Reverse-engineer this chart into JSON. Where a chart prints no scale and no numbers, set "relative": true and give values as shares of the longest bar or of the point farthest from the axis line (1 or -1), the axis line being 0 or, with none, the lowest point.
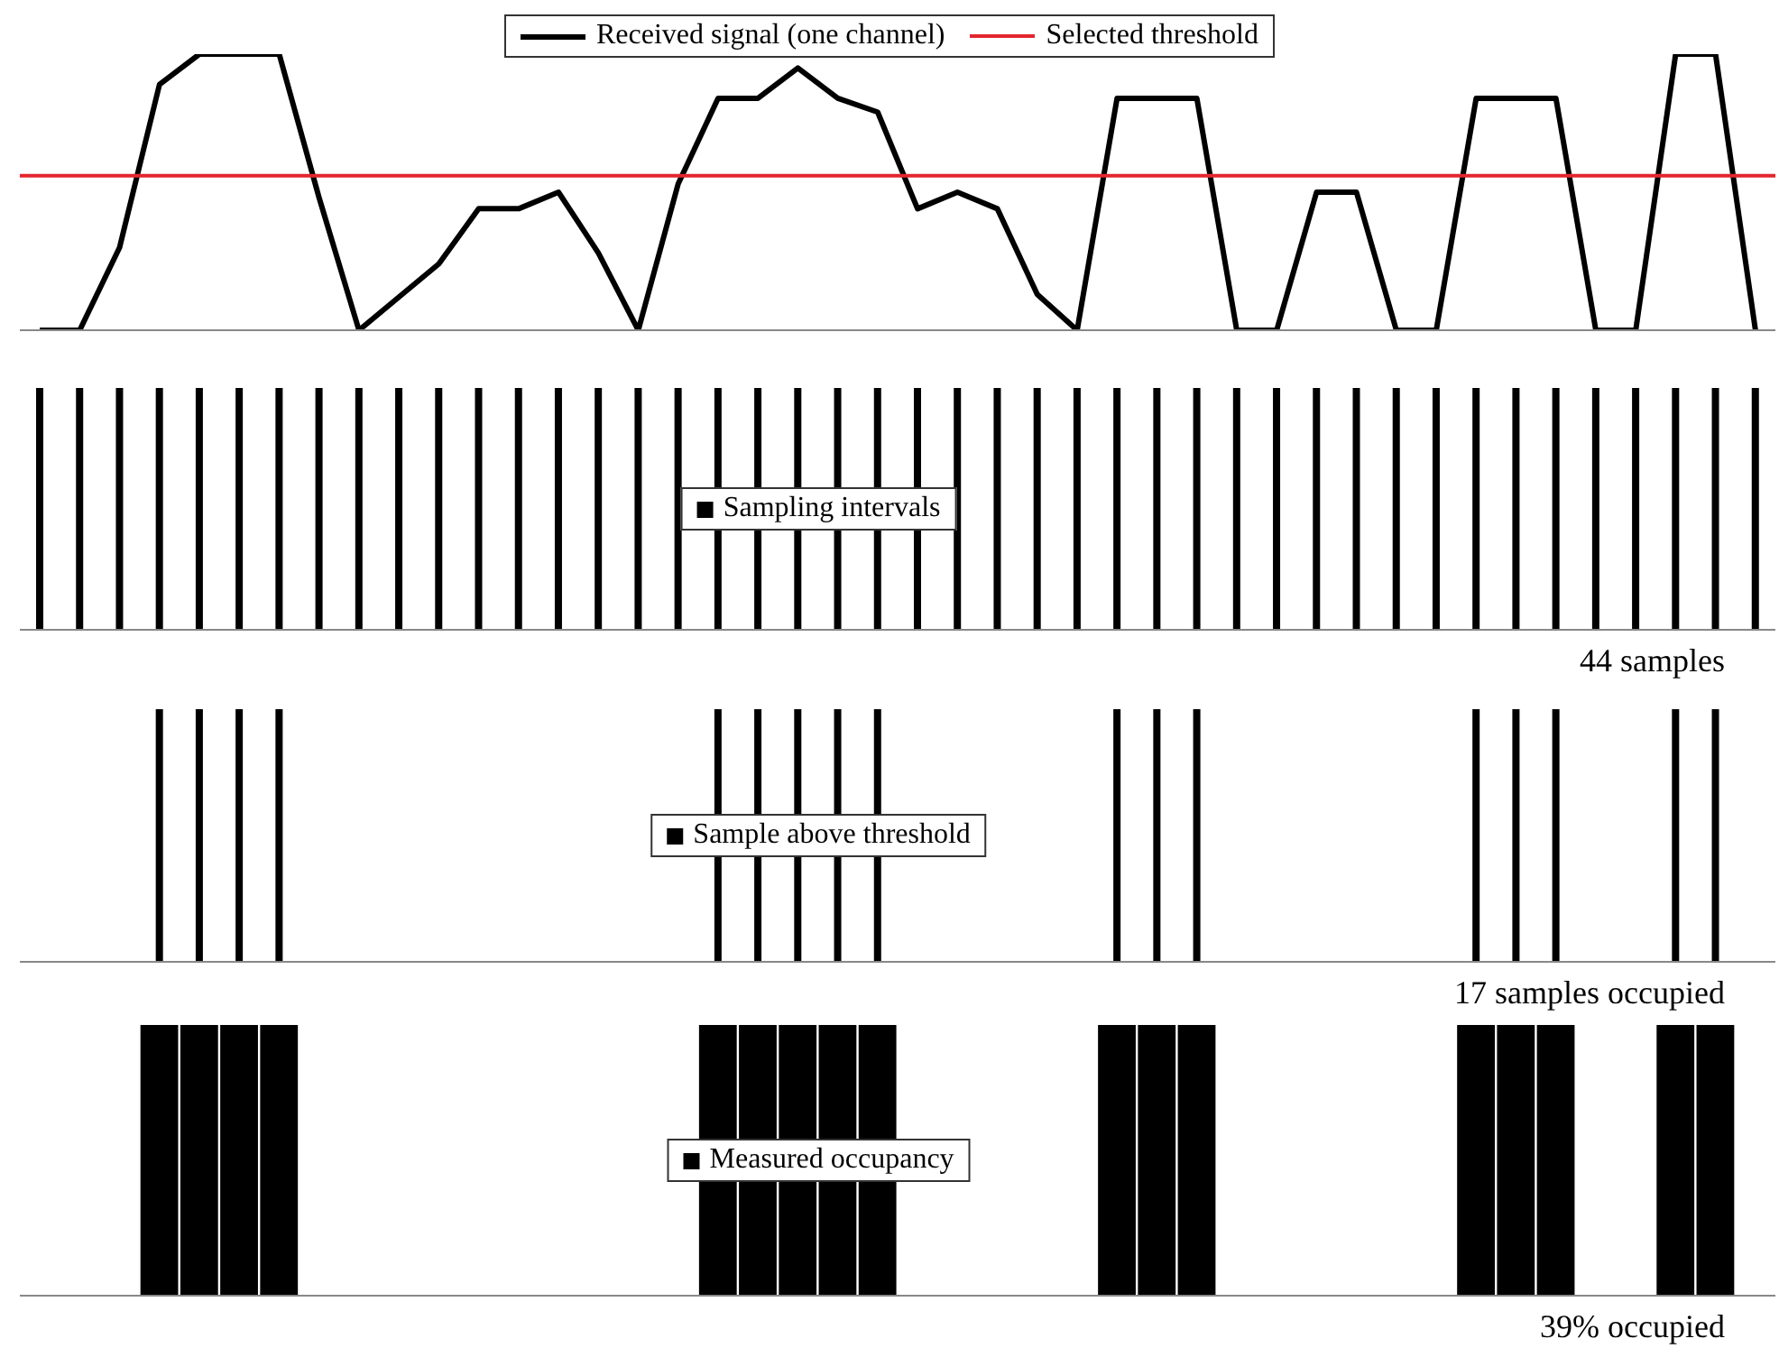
{
  "chart_data": [
    {
      "type": "line",
      "relative": true,
      "legend": "top",
      "categories": [
        null,
        null,
        null,
        null,
        null,
        null,
        null,
        null,
        null,
        null,
        null,
        null,
        null,
        null,
        null,
        null,
        null,
        null,
        null,
        null,
        null,
        null,
        null,
        null,
        null,
        null,
        null,
        null,
        null,
        null,
        null,
        null,
        null,
        null,
        null,
        null,
        null,
        null,
        null,
        null,
        null,
        null,
        null,
        null
      ],
      "series": [
        {
          "name": "Received signal (one channel)",
          "color": "#000000",
          "values": [
            0,
            0,
            0.3,
            0.89,
            1,
            1,
            1,
            0.48,
            0,
            0.12,
            0.24,
            0.44,
            0.44,
            0.5,
            0.28,
            0,
            0.53,
            0.84,
            0.84,
            0.95,
            0.84,
            0.79,
            0.44,
            0.5,
            0.44,
            0.13,
            0,
            0.84,
            0.84,
            0.84,
            0,
            0,
            0.5,
            0.5,
            0,
            0,
            0.84,
            0.84,
            0.84,
            0,
            0,
            1,
            1,
            0
          ]
        }
      ],
      "ref_lines": [
        {
          "axis": "y",
          "value": 0.56,
          "label": "Selected threshold",
          "color": "#e3262e"
        }
      ]
    },
    {
      "type": "bar",
      "relative": true,
      "legend": "center",
      "categories": [
        null,
        null,
        null,
        null,
        null,
        null,
        null,
        null,
        null,
        null,
        null,
        null,
        null,
        null,
        null,
        null,
        null,
        null,
        null,
        null,
        null,
        null,
        null,
        null,
        null,
        null,
        null,
        null,
        null,
        null,
        null,
        null,
        null,
        null,
        null,
        null,
        null,
        null,
        null,
        null,
        null,
        null,
        null,
        null
      ],
      "series": [
        {
          "name": "Sampling intervals",
          "color": "#000000",
          "values": [
            1,
            1,
            1,
            1,
            1,
            1,
            1,
            1,
            1,
            1,
            1,
            1,
            1,
            1,
            1,
            1,
            1,
            1,
            1,
            1,
            1,
            1,
            1,
            1,
            1,
            1,
            1,
            1,
            1,
            1,
            1,
            1,
            1,
            1,
            1,
            1,
            1,
            1,
            1,
            1,
            1,
            1,
            1,
            1
          ]
        }
      ],
      "annotations": [
        "44 samples"
      ]
    },
    {
      "type": "bar",
      "relative": true,
      "legend": "center",
      "categories": [
        null,
        null,
        null,
        null,
        null,
        null,
        null,
        null,
        null,
        null,
        null,
        null,
        null,
        null,
        null,
        null,
        null,
        null,
        null,
        null,
        null,
        null,
        null,
        null,
        null,
        null,
        null,
        null,
        null,
        null,
        null,
        null,
        null,
        null,
        null,
        null,
        null,
        null,
        null,
        null,
        null,
        null,
        null,
        null
      ],
      "series": [
        {
          "name": "Sample above threshold",
          "color": "#000000",
          "values": [
            0,
            0,
            0,
            1,
            1,
            1,
            1,
            0,
            0,
            0,
            0,
            0,
            0,
            0,
            0,
            0,
            0,
            1,
            1,
            1,
            1,
            1,
            0,
            0,
            0,
            0,
            0,
            1,
            1,
            1,
            0,
            0,
            0,
            0,
            0,
            0,
            1,
            1,
            1,
            0,
            0,
            1,
            1,
            0
          ]
        }
      ],
      "annotations": [
        "17 samples occupied"
      ]
    },
    {
      "type": "bar",
      "relative": true,
      "legend": "center",
      "categories": [
        null,
        null,
        null,
        null,
        null,
        null,
        null,
        null,
        null,
        null,
        null,
        null,
        null,
        null,
        null,
        null,
        null,
        null,
        null,
        null,
        null,
        null,
        null,
        null,
        null,
        null,
        null,
        null,
        null,
        null,
        null,
        null,
        null,
        null,
        null,
        null,
        null,
        null,
        null,
        null,
        null,
        null,
        null,
        null
      ],
      "series": [
        {
          "name": "Measured occupancy",
          "color": "#000000",
          "values": [
            0,
            0,
            0,
            1,
            1,
            1,
            1,
            0,
            0,
            0,
            0,
            0,
            0,
            0,
            0,
            0,
            0,
            1,
            1,
            1,
            1,
            1,
            0,
            0,
            0,
            0,
            0,
            1,
            1,
            1,
            0,
            0,
            0,
            0,
            0,
            0,
            1,
            1,
            1,
            0,
            0,
            1,
            1,
            0
          ]
        }
      ],
      "annotations": [
        "39% occupied"
      ]
    }
  ]
}
